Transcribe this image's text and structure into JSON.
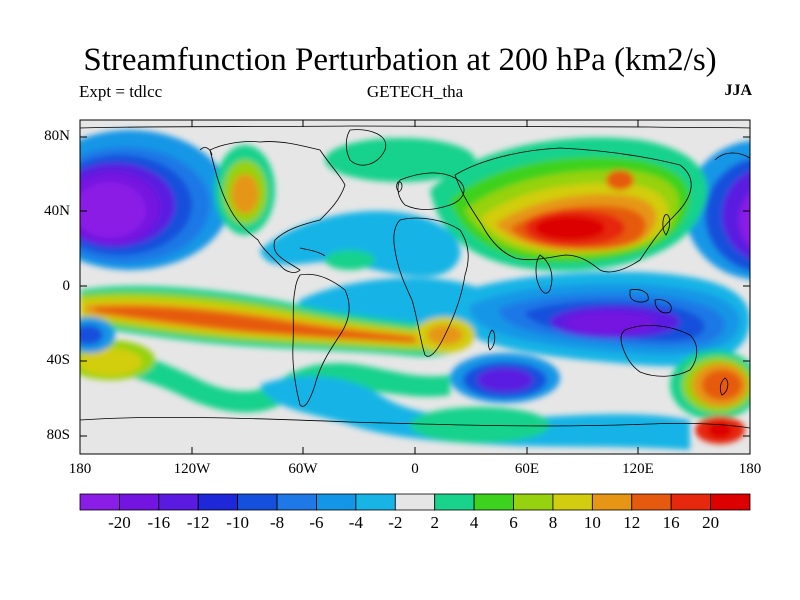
{
  "title": "Streamfunction Perturbation at 200 hPa (km2/s)",
  "left_label": "Expt = tdlcc",
  "center_label": "GETECH_tha",
  "right_label": "JJA",
  "lat_ticks": [
    "80N",
    "40N",
    "0",
    "40S",
    "80S"
  ],
  "lon_ticks": [
    "180",
    "120W",
    "60W",
    "0",
    "60E",
    "120E",
    "180"
  ],
  "colorbar": {
    "labels": [
      "-20",
      "-16",
      "-12",
      "-10",
      "-8",
      "-6",
      "-4",
      "-2",
      "2",
      "4",
      "6",
      "8",
      "10",
      "12",
      "16",
      "20"
    ],
    "colors": [
      "#8a1ee6",
      "#7414e0",
      "#5a1ae0",
      "#1e28d8",
      "#1450dc",
      "#1e78e6",
      "#1496e6",
      "#19b4e6",
      "#e6e6e6",
      "#19d28c",
      "#3cd21e",
      "#96d20f",
      "#d2cd0f",
      "#e69614",
      "#e65a0f",
      "#e6280f",
      "#dc0000"
    ]
  }
}
